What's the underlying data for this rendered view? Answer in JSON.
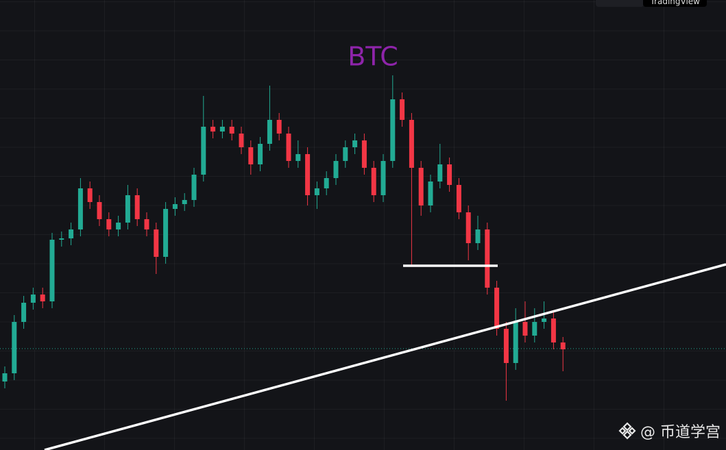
{
  "chart_data": {
    "type": "candlestick",
    "title": "BTC",
    "watermark": "@ 币道学宫",
    "toolbar_button": "TradingView",
    "up_color": "#22ab94",
    "down_color": "#f23645",
    "title_color": "#8e24aa",
    "ylim": [
      0,
      657
    ],
    "open": [
      100,
      112,
      187,
      215,
      227,
      217,
      307,
      309,
      322,
      382,
      362,
      337,
      322,
      332,
      372,
      337,
      322,
      282,
      352,
      359,
      365,
      402,
      472,
      465,
      472,
      462,
      442,
      417,
      447,
      482,
      462,
      422,
      432,
      372,
      382,
      397,
      422,
      442,
      452,
      412,
      372,
      422,
      512,
      482,
      412,
      357,
      392,
      417,
      387,
      347,
      302,
      322,
      237,
      177,
      127,
      187,
      167,
      187,
      192,
      157
    ],
    "high": [
      122,
      197,
      225,
      237,
      237,
      317,
      319,
      332,
      397,
      392,
      372,
      347,
      342,
      387,
      382,
      347,
      332,
      362,
      369,
      375,
      412,
      517,
      482,
      482,
      482,
      472,
      452,
      457,
      532,
      492,
      472,
      452,
      442,
      392,
      407,
      432,
      452,
      462,
      462,
      422,
      432,
      547,
      522,
      492,
      422,
      402,
      447,
      427,
      397,
      357,
      342,
      332,
      247,
      187,
      207,
      217,
      207,
      217,
      202,
      165
    ],
    "low": [
      90,
      102,
      177,
      205,
      207,
      207,
      297,
      299,
      312,
      352,
      327,
      312,
      312,
      322,
      327,
      312,
      257,
      272,
      342,
      349,
      355,
      392,
      455,
      455,
      452,
      432,
      402,
      407,
      437,
      452,
      412,
      412,
      357,
      352,
      372,
      387,
      412,
      432,
      402,
      362,
      362,
      412,
      472,
      269,
      342,
      347,
      382,
      377,
      337,
      277,
      292,
      227,
      167,
      72,
      117,
      157,
      157,
      177,
      147,
      115
    ],
    "close": [
      112,
      187,
      215,
      227,
      217,
      307,
      309,
      322,
      382,
      362,
      337,
      322,
      332,
      372,
      337,
      322,
      282,
      352,
      359,
      365,
      402,
      472,
      465,
      472,
      462,
      442,
      417,
      447,
      482,
      462,
      422,
      432,
      372,
      382,
      397,
      422,
      442,
      452,
      412,
      372,
      422,
      512,
      482,
      412,
      357,
      392,
      417,
      387,
      347,
      302,
      322,
      237,
      177,
      127,
      187,
      167,
      187,
      192,
      157,
      147
    ]
  }
}
